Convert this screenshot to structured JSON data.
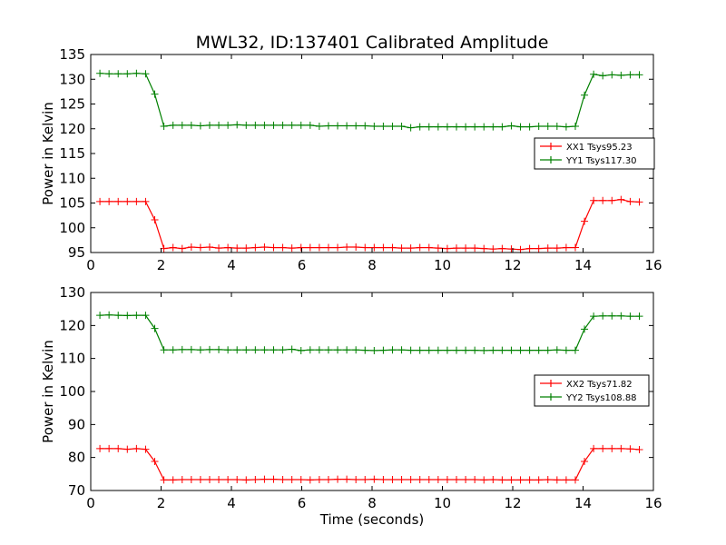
{
  "title": "MWL32, ID:137401 Calibrated Amplitude",
  "colors": {
    "xx": "#ff0000",
    "yy": "#008000",
    "axes": "#000000"
  },
  "chart_data": [
    {
      "type": "line",
      "xlabel": "",
      "ylabel": "Power in Kelvin",
      "xlim": [
        0,
        16
      ],
      "ylim": [
        95,
        135
      ],
      "xticks": [
        0,
        2,
        4,
        6,
        8,
        10,
        12,
        14,
        16
      ],
      "yticks": [
        95,
        100,
        105,
        110,
        115,
        120,
        125,
        130,
        135
      ],
      "legend_position": "right",
      "grid": false,
      "x": [
        0.26,
        0.52,
        0.78,
        1.04,
        1.3,
        1.56,
        1.82,
        2.08,
        2.34,
        2.6,
        2.86,
        3.12,
        3.38,
        3.64,
        3.9,
        4.16,
        4.42,
        4.68,
        4.94,
        5.2,
        5.46,
        5.72,
        5.98,
        6.24,
        6.5,
        6.76,
        7.02,
        7.28,
        7.54,
        7.8,
        8.06,
        8.32,
        8.58,
        8.84,
        9.1,
        9.36,
        9.62,
        9.88,
        10.14,
        10.4,
        10.66,
        10.92,
        11.18,
        11.44,
        11.7,
        11.96,
        12.22,
        12.48,
        12.74,
        13.0,
        13.26,
        13.52,
        13.78,
        14.04,
        14.3,
        14.56,
        14.82,
        15.08,
        15.34,
        15.6
      ],
      "series": [
        {
          "name": "XX1 Tsys95.23",
          "color": "#ff0000",
          "values": [
            105.3,
            105.3,
            105.3,
            105.3,
            105.3,
            105.3,
            101.6,
            95.8,
            96.0,
            95.8,
            96.1,
            96.0,
            96.1,
            95.9,
            96.0,
            95.9,
            95.9,
            96.0,
            96.1,
            96.0,
            96.0,
            95.9,
            96.0,
            96.0,
            96.0,
            96.0,
            96.0,
            96.1,
            96.1,
            96.0,
            96.0,
            96.0,
            96.0,
            95.9,
            95.9,
            96.0,
            96.0,
            95.9,
            95.8,
            95.9,
            95.9,
            95.9,
            95.8,
            95.7,
            95.8,
            95.7,
            95.6,
            95.8,
            95.8,
            95.9,
            95.9,
            96.0,
            96.0,
            101.3,
            105.5,
            105.5,
            105.5,
            105.7,
            105.3,
            105.2
          ]
        },
        {
          "name": "YY1 Tsys117.30",
          "color": "#008000",
          "values": [
            131.2,
            131.1,
            131.1,
            131.1,
            131.2,
            131.1,
            127.0,
            120.5,
            120.7,
            120.7,
            120.7,
            120.6,
            120.7,
            120.7,
            120.7,
            120.8,
            120.7,
            120.7,
            120.7,
            120.7,
            120.7,
            120.7,
            120.7,
            120.7,
            120.5,
            120.6,
            120.6,
            120.6,
            120.6,
            120.6,
            120.5,
            120.5,
            120.5,
            120.5,
            120.2,
            120.4,
            120.4,
            120.4,
            120.4,
            120.4,
            120.4,
            120.4,
            120.4,
            120.4,
            120.4,
            120.6,
            120.4,
            120.4,
            120.5,
            120.5,
            120.5,
            120.4,
            120.5,
            126.8,
            131.0,
            130.7,
            130.9,
            130.8,
            130.9,
            130.9
          ]
        }
      ]
    },
    {
      "type": "line",
      "xlabel": "Time (seconds)",
      "ylabel": "Power in Kelvin",
      "xlim": [
        0,
        16
      ],
      "ylim": [
        70,
        130
      ],
      "xticks": [
        0,
        2,
        4,
        6,
        8,
        10,
        12,
        14,
        16
      ],
      "yticks": [
        70,
        80,
        90,
        100,
        110,
        120,
        130
      ],
      "legend_position": "right",
      "grid": false,
      "x": [
        0.26,
        0.52,
        0.78,
        1.04,
        1.3,
        1.56,
        1.82,
        2.08,
        2.34,
        2.6,
        2.86,
        3.12,
        3.38,
        3.64,
        3.9,
        4.16,
        4.42,
        4.68,
        4.94,
        5.2,
        5.46,
        5.72,
        5.98,
        6.24,
        6.5,
        6.76,
        7.02,
        7.28,
        7.54,
        7.8,
        8.06,
        8.32,
        8.58,
        8.84,
        9.1,
        9.36,
        9.62,
        9.88,
        10.14,
        10.4,
        10.66,
        10.92,
        11.18,
        11.44,
        11.7,
        11.96,
        12.22,
        12.48,
        12.74,
        13.0,
        13.26,
        13.52,
        13.78,
        14.04,
        14.3,
        14.56,
        14.82,
        15.08,
        15.34,
        15.6
      ],
      "series": [
        {
          "name": "XX2 Tsys71.82",
          "color": "#ff0000",
          "values": [
            82.7,
            82.7,
            82.7,
            82.5,
            82.7,
            82.5,
            78.8,
            73.2,
            73.2,
            73.3,
            73.3,
            73.3,
            73.3,
            73.3,
            73.3,
            73.3,
            73.2,
            73.3,
            73.4,
            73.4,
            73.3,
            73.3,
            73.3,
            73.2,
            73.3,
            73.3,
            73.4,
            73.4,
            73.3,
            73.3,
            73.4,
            73.3,
            73.3,
            73.3,
            73.3,
            73.3,
            73.3,
            73.3,
            73.3,
            73.3,
            73.3,
            73.3,
            73.2,
            73.3,
            73.2,
            73.2,
            73.2,
            73.2,
            73.2,
            73.3,
            73.2,
            73.2,
            73.2,
            78.8,
            82.7,
            82.7,
            82.7,
            82.7,
            82.6,
            82.4
          ]
        },
        {
          "name": "YY2 Tsys108.88",
          "color": "#008000",
          "values": [
            123.1,
            123.2,
            123.1,
            123.0,
            123.1,
            123.1,
            119.1,
            112.6,
            112.6,
            112.7,
            112.7,
            112.6,
            112.7,
            112.7,
            112.6,
            112.6,
            112.6,
            112.6,
            112.6,
            112.6,
            112.6,
            112.8,
            112.4,
            112.6,
            112.6,
            112.6,
            112.6,
            112.6,
            112.6,
            112.5,
            112.4,
            112.5,
            112.6,
            112.6,
            112.5,
            112.5,
            112.5,
            112.5,
            112.5,
            112.5,
            112.5,
            112.5,
            112.4,
            112.5,
            112.5,
            112.5,
            112.5,
            112.5,
            112.5,
            112.5,
            112.6,
            112.5,
            112.5,
            118.9,
            122.8,
            122.9,
            122.9,
            122.9,
            122.8,
            122.8
          ]
        }
      ]
    }
  ]
}
